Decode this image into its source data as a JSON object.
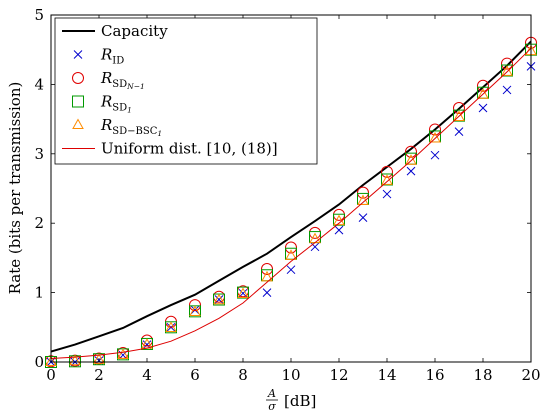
{
  "chart_data": {
    "type": "line",
    "xlabel_main": "A",
    "xlabel_den": "σ",
    "xlabel_unit": "[dB]",
    "ylabel": "Rate (bits per transmission)",
    "xlim": [
      0,
      20
    ],
    "ylim": [
      0,
      5
    ],
    "xticks": [
      0,
      2,
      4,
      6,
      8,
      10,
      12,
      14,
      16,
      18,
      20
    ],
    "yticks": [
      0,
      1,
      2,
      3,
      4,
      5
    ],
    "grid": false,
    "legend_position": "top-left",
    "x": [
      0,
      1,
      2,
      3,
      4,
      5,
      6,
      7,
      8,
      9,
      10,
      11,
      12,
      13,
      14,
      15,
      16,
      17,
      18,
      19,
      20
    ],
    "series": [
      {
        "key": "capacity",
        "label": "Capacity",
        "label_base": "Capacity",
        "label_sub": "",
        "label_subsub": "",
        "style": "line",
        "color": "#000000",
        "x": [
          0,
          1,
          2,
          3,
          4,
          5,
          6,
          7,
          8,
          9,
          10,
          11,
          12,
          13,
          14,
          15,
          16,
          17,
          18,
          19,
          20
        ],
        "values": [
          0.15,
          0.25,
          0.37,
          0.49,
          0.66,
          0.82,
          0.97,
          1.17,
          1.37,
          1.56,
          1.8,
          2.03,
          2.27,
          2.55,
          2.81,
          3.07,
          3.35,
          3.65,
          3.96,
          4.27,
          4.62
        ]
      },
      {
        "key": "rid",
        "label": "R_ID",
        "label_base": "R",
        "label_sub": "ID",
        "label_subsub": "",
        "style": "marker-x",
        "color": "#0000cc",
        "x": [
          0,
          1,
          2,
          3,
          4,
          5,
          6,
          7,
          8,
          9,
          10,
          11,
          12,
          13,
          14,
          15,
          16,
          17,
          18,
          19,
          20
        ],
        "values": [
          0.0,
          0.0,
          0.02,
          0.1,
          0.25,
          0.5,
          0.75,
          0.9,
          0.99,
          1.0,
          1.33,
          1.66,
          1.9,
          2.08,
          2.42,
          2.75,
          2.98,
          3.32,
          3.66,
          3.92,
          4.26
        ]
      },
      {
        "key": "rsdn",
        "label": "R_SD_N−1",
        "label_base": "R",
        "label_sub": "SD",
        "label_subsub": "N−1",
        "style": "marker-circle",
        "color": "#e00000",
        "x": [
          0,
          1,
          2,
          3,
          4,
          5,
          6,
          7,
          8,
          9,
          10,
          11,
          12,
          13,
          14,
          15,
          16,
          17,
          18,
          19,
          20
        ],
        "values": [
          0.01,
          0.02,
          0.05,
          0.13,
          0.31,
          0.58,
          0.82,
          0.94,
          1.02,
          1.34,
          1.65,
          1.86,
          2.12,
          2.44,
          2.74,
          3.03,
          3.35,
          3.66,
          3.98,
          4.3,
          4.6
        ]
      },
      {
        "key": "rsd1",
        "label": "R_SD_1",
        "label_base": "R",
        "label_sub": "SD",
        "label_subsub": "1",
        "style": "marker-square",
        "color": "#009900",
        "x": [
          0,
          1,
          2,
          3,
          4,
          5,
          6,
          7,
          8,
          9,
          10,
          11,
          12,
          13,
          14,
          15,
          16,
          17,
          18,
          19,
          20
        ],
        "values": [
          0.0,
          0.01,
          0.04,
          0.11,
          0.26,
          0.5,
          0.73,
          0.9,
          1.0,
          1.25,
          1.56,
          1.8,
          2.05,
          2.35,
          2.63,
          2.93,
          3.25,
          3.55,
          3.88,
          4.2,
          4.5
        ]
      },
      {
        "key": "rsdbsc",
        "label": "R_SD−BSC_1",
        "label_base": "R",
        "label_sub": "SD−BSC",
        "label_subsub": "1",
        "style": "marker-triangle",
        "color": "#ff8c00",
        "x": [
          0,
          1,
          2,
          3,
          4,
          5,
          6,
          7,
          8,
          9,
          10,
          11,
          12,
          13,
          14,
          15,
          16,
          17,
          18,
          19,
          20
        ],
        "values": [
          0.0,
          0.01,
          0.03,
          0.1,
          0.25,
          0.49,
          0.72,
          0.89,
          0.98,
          1.22,
          1.53,
          1.77,
          2.03,
          2.32,
          2.61,
          2.9,
          3.22,
          3.53,
          3.85,
          4.18,
          4.48
        ]
      },
      {
        "key": "uniform",
        "label": "Uniform dist. [10, (18)]",
        "label_base": "Uniform dist. [10, (18)]",
        "label_sub": "",
        "label_subsub": "",
        "style": "line",
        "color": "#dd0000",
        "x": [
          0,
          1,
          2,
          3,
          4,
          5,
          6,
          7,
          8,
          9,
          10,
          11,
          12,
          13,
          14,
          15,
          16,
          17,
          18,
          19,
          20
        ],
        "values": [
          0.05,
          0.07,
          0.1,
          0.14,
          0.2,
          0.3,
          0.45,
          0.63,
          0.85,
          1.15,
          1.45,
          1.72,
          2.0,
          2.3,
          2.6,
          2.9,
          3.22,
          3.54,
          3.86,
          4.18,
          4.52
        ]
      }
    ]
  }
}
